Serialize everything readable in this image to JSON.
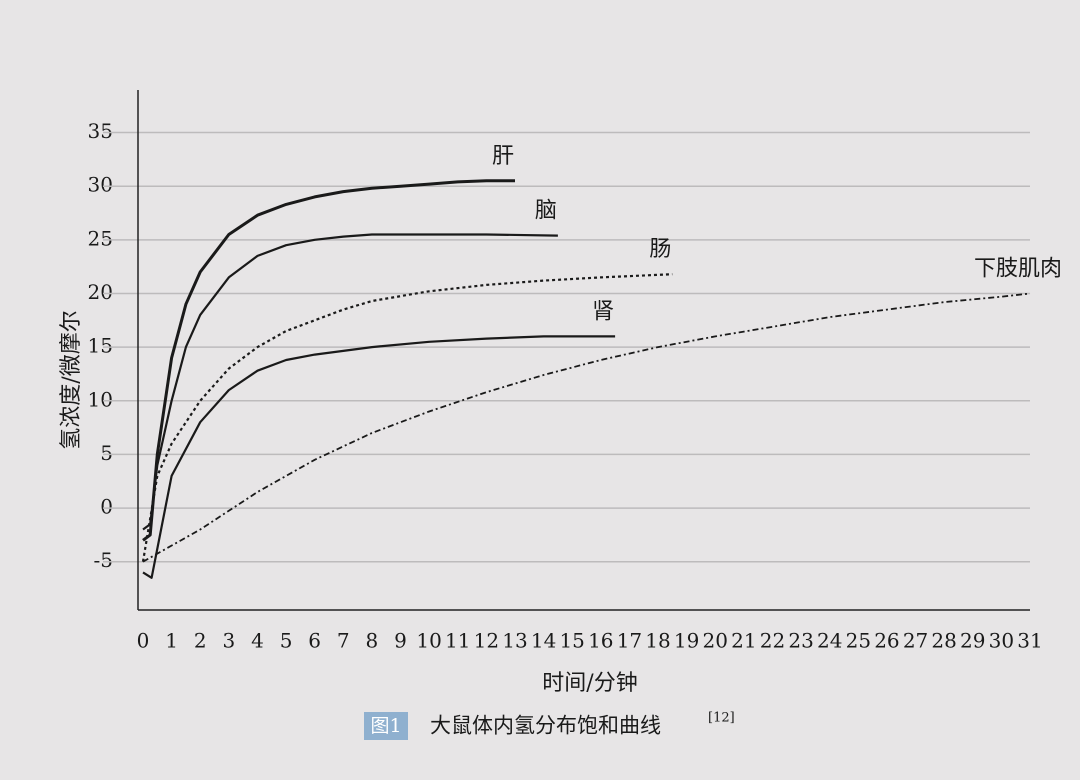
{
  "chart_data": {
    "type": "line",
    "xlabel": "时间/分钟",
    "ylabel": "氢浓度/微摩尔",
    "caption": {
      "figure": "图1",
      "text": "大鼠体内氢分布饱和曲线",
      "ref": "[12]"
    },
    "xlim": [
      0,
      31
    ],
    "ylim": [
      -9.5,
      38.5
    ],
    "xticks": [
      0,
      1,
      2,
      3,
      4,
      5,
      6,
      7,
      8,
      9,
      10,
      11,
      12,
      13,
      14,
      15,
      16,
      17,
      18,
      19,
      20,
      21,
      22,
      23,
      24,
      25,
      26,
      27,
      28,
      29,
      30,
      31
    ],
    "yticks": [
      -5,
      0,
      5,
      10,
      15,
      20,
      25,
      30,
      35
    ],
    "grid": true,
    "series": [
      {
        "name": "肝",
        "color": "#1a1a1a",
        "style": "solid-thick",
        "x": [
          0,
          0.25,
          0.5,
          1,
          1.5,
          2,
          3,
          4,
          5,
          6,
          7,
          8,
          9,
          10,
          11,
          12,
          13
        ],
        "values": [
          -3,
          -2.5,
          5,
          14,
          19,
          22,
          25.5,
          27.3,
          28.3,
          29,
          29.5,
          29.8,
          30,
          30.2,
          30.4,
          30.5,
          30.5
        ]
      },
      {
        "name": "脑",
        "color": "#1a1a1a",
        "style": "solid",
        "x": [
          0,
          0.25,
          0.5,
          1,
          1.5,
          2,
          3,
          4,
          5,
          6,
          7,
          8,
          10,
          12,
          14.5
        ],
        "values": [
          -2,
          -1.5,
          4,
          10,
          15,
          18,
          21.5,
          23.5,
          24.5,
          25,
          25.3,
          25.5,
          25.5,
          25.5,
          25.4
        ]
      },
      {
        "name": "肠",
        "color": "#1a1a1a",
        "style": "dotted",
        "x": [
          0,
          0.5,
          1,
          2,
          3,
          4,
          5,
          6,
          7,
          8,
          10,
          12,
          14,
          16,
          18.5
        ],
        "values": [
          -5,
          3,
          6,
          10,
          13,
          15,
          16.5,
          17.5,
          18.5,
          19.3,
          20.2,
          20.8,
          21.2,
          21.5,
          21.8
        ]
      },
      {
        "name": "肾",
        "color": "#1a1a1a",
        "style": "solid",
        "x": [
          0,
          0.3,
          1,
          2,
          3,
          4,
          5,
          6,
          8,
          10,
          12,
          14,
          16.5
        ],
        "values": [
          -6,
          -6.5,
          3,
          8,
          11,
          12.8,
          13.8,
          14.3,
          15,
          15.5,
          15.8,
          16,
          16
        ]
      },
      {
        "name": "下肢肌肉",
        "color": "#1a1a1a",
        "style": "dashdot",
        "x": [
          0,
          2,
          4,
          6,
          8,
          10,
          12,
          14,
          16,
          18,
          20,
          22,
          24,
          26,
          28,
          30,
          31
        ],
        "values": [
          -5,
          -2,
          1.5,
          4.5,
          7,
          9,
          10.8,
          12.4,
          13.8,
          15,
          16,
          16.9,
          17.8,
          18.5,
          19.2,
          19.7,
          20
        ]
      }
    ]
  }
}
